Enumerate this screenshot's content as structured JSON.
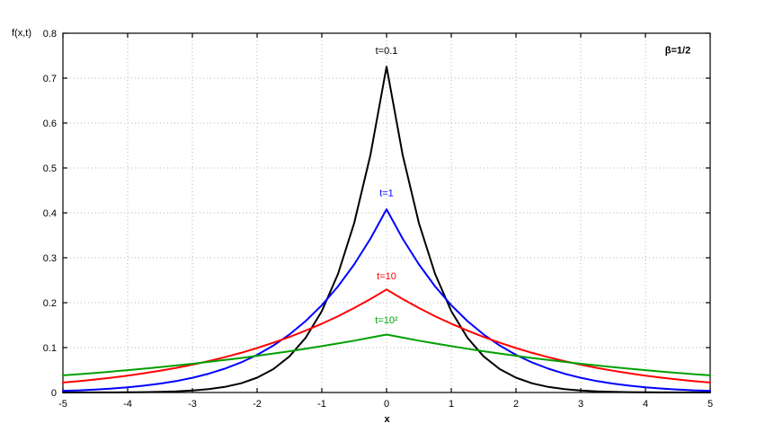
{
  "figure": {
    "background": "#ffffff"
  },
  "chart_data": {
    "type": "line",
    "title": "",
    "xlabel": "x",
    "ylabel": "f(x,t)",
    "corner_label": "β=1/2",
    "corner_label_pos": [
      4.5,
      0.755
    ],
    "xlim": [
      -5,
      5
    ],
    "ylim": [
      0,
      0.8
    ],
    "grid": true,
    "legend_position": "none",
    "xticks": [
      -5,
      -4,
      -3,
      -2,
      -1,
      0,
      1,
      2,
      3,
      4,
      5
    ],
    "yticks": [
      0,
      0.1,
      0.2,
      0.3,
      0.4,
      0.5,
      0.6,
      0.7,
      0.8
    ],
    "xtick_labels": [
      "-5",
      "-4",
      "-3",
      "-2",
      "-1",
      "0",
      "1",
      "2",
      "3",
      "4",
      "5"
    ],
    "ytick_labels": [
      "0",
      "0.1",
      "0.2",
      "0.3",
      "0.4",
      "0.5",
      "0.6",
      "0.7",
      "0.8"
    ],
    "x": [
      -5,
      -4.75,
      -4.5,
      -4.25,
      -4,
      -3.75,
      -3.5,
      -3.25,
      -3,
      -2.75,
      -2.5,
      -2.25,
      -2,
      -1.75,
      -1.5,
      -1.25,
      -1,
      -0.75,
      -0.5,
      -0.25,
      0,
      0.25,
      0.5,
      0.75,
      1,
      1.25,
      1.5,
      1.75,
      2,
      2.25,
      2.5,
      2.75,
      3,
      3.25,
      3.5,
      3.75,
      4,
      4.25,
      4.5,
      4.75,
      5
    ],
    "series": [
      {
        "name": "t=0.1",
        "label": "t=0.1",
        "color": "#000000",
        "label_pos": [
          0,
          0.754
        ],
        "peak": 0.726,
        "values": [
          0.0,
          0.0001,
          0.0001,
          0.0002,
          0.0004,
          0.0008,
          0.0014,
          0.0025,
          0.0044,
          0.0075,
          0.0125,
          0.0205,
          0.033,
          0.052,
          0.0804,
          0.1219,
          0.1812,
          0.264,
          0.3772,
          0.5283,
          0.7256,
          0.5283,
          0.3772,
          0.264,
          0.1812,
          0.1219,
          0.0804,
          0.052,
          0.033,
          0.0205,
          0.0125,
          0.0075,
          0.0044,
          0.0025,
          0.0014,
          0.0008,
          0.0004,
          0.0002,
          0.0001,
          0.0001,
          0.0
        ]
      },
      {
        "name": "t=1",
        "label": "t=1",
        "color": "#0000ff",
        "label_pos": [
          0,
          0.437
        ],
        "peak": 0.408,
        "values": [
          0.0037,
          0.0049,
          0.0066,
          0.0088,
          0.0115,
          0.0151,
          0.0197,
          0.0254,
          0.0327,
          0.0417,
          0.053,
          0.0669,
          0.0838,
          0.1044,
          0.1293,
          0.159,
          0.1944,
          0.2362,
          0.2852,
          0.3422,
          0.4081,
          0.3422,
          0.2852,
          0.2362,
          0.1944,
          0.159,
          0.1293,
          0.1044,
          0.0838,
          0.0669,
          0.053,
          0.0417,
          0.0327,
          0.0254,
          0.0197,
          0.0151,
          0.0115,
          0.0088,
          0.0066,
          0.0049,
          0.0037
        ]
      },
      {
        "name": "t=10",
        "label": "t=10",
        "color": "#ff0000",
        "label_pos": [
          0,
          0.252
        ],
        "peak": 0.23,
        "values": [
          0.0221,
          0.0253,
          0.029,
          0.033,
          0.0376,
          0.0428,
          0.0485,
          0.0549,
          0.062,
          0.0699,
          0.0786,
          0.0883,
          0.099,
          0.1107,
          0.1236,
          0.1377,
          0.1531,
          0.1699,
          0.1882,
          0.208,
          0.2295,
          0.208,
          0.1882,
          0.1699,
          0.1531,
          0.1377,
          0.1236,
          0.1107,
          0.099,
          0.0883,
          0.0786,
          0.0699,
          0.062,
          0.0549,
          0.0485,
          0.0428,
          0.0376,
          0.033,
          0.029,
          0.0253,
          0.0221
        ]
      },
      {
        "name": "t=10^2",
        "label": "t=10²",
        "color": "#00a000",
        "label_pos": [
          0,
          0.154
        ],
        "peak": 0.129,
        "values": [
          0.0382,
          0.0408,
          0.0436,
          0.0466,
          0.0497,
          0.053,
          0.0565,
          0.0601,
          0.064,
          0.0681,
          0.0724,
          0.0769,
          0.0817,
          0.0867,
          0.0919,
          0.0974,
          0.1032,
          0.1092,
          0.1155,
          0.1221,
          0.129,
          0.1221,
          0.1155,
          0.1092,
          0.1032,
          0.0974,
          0.0919,
          0.0867,
          0.0817,
          0.0769,
          0.0724,
          0.0681,
          0.064,
          0.0601,
          0.0565,
          0.053,
          0.0497,
          0.0466,
          0.0436,
          0.0408,
          0.0382
        ]
      }
    ]
  }
}
